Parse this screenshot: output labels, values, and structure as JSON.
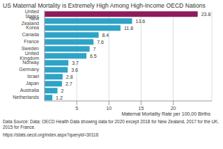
{
  "chart_data": {
    "type": "bar",
    "orientation": "horizontal",
    "title": "US Maternal Mortality is Extremely High Among High-Income OECD Nations",
    "x_label": "Maternal Mortality Rate per 100,00 Births",
    "annotations": [
      "Data Source: Data: OECD Health Data showing data for 2020 except 2018 for New Zealand, 2017 for the UK, 2015 for France.",
      "https://stats.oecd.org/index.aspx?queryid=30116"
    ],
    "categories": [
      "United States",
      "New Zealand",
      "Korea",
      "Canada",
      "France",
      "Sweden",
      "United Kingdom",
      "Norway",
      "Germany",
      "Israel",
      "Japan",
      "Australia",
      "Netherlands"
    ],
    "values": [
      23.8,
      13.6,
      11.8,
      8.4,
      7.6,
      7,
      6.5,
      3.7,
      3.6,
      2.8,
      2.7,
      2,
      1.2
    ],
    "colors": [
      "#8e1b5c",
      "#2ea3c7",
      "#2ea3c7",
      "#2ea3c7",
      "#2ea3c7",
      "#2ea3c7",
      "#2ea3c7",
      "#2ea3c7",
      "#2ea3c7",
      "#2ea3c7",
      "#2ea3c7",
      "#2ea3c7",
      "#2ea3c7"
    ],
    "xlim": [
      0,
      26
    ],
    "xticks": [
      5,
      10,
      15,
      20
    ],
    "grid": true,
    "data_labels": true
  }
}
